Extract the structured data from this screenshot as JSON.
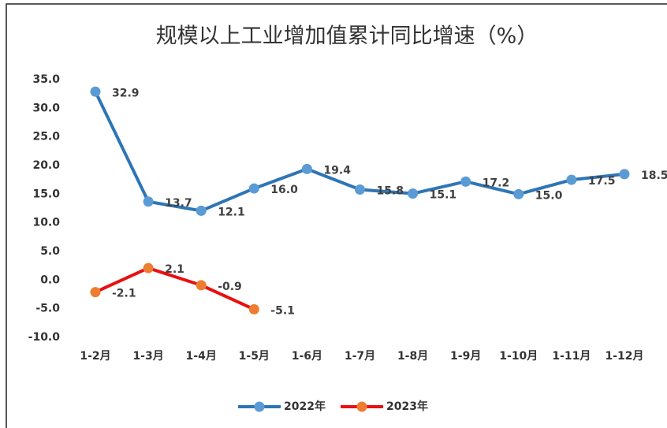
{
  "chart_data": {
    "type": "line",
    "title": "规模以上工业增加值累计同比增速（%）",
    "categories": [
      "1-2月",
      "1-3月",
      "1-4月",
      "1-5月",
      "1-6月",
      "1-7月",
      "1-8月",
      "1-9月",
      "1-10月",
      "1-11月",
      "1-12月"
    ],
    "series": [
      {
        "name": "2022年",
        "color": "#2e75b6",
        "marker_color": "#5b9bd5",
        "values": [
          32.9,
          13.7,
          12.1,
          16.0,
          19.4,
          15.8,
          15.1,
          17.2,
          15.0,
          17.5,
          18.5
        ],
        "value_labels": [
          "32.9",
          "13.7",
          "12.1",
          "16.0",
          "19.4",
          "15.8",
          "15.1",
          "17.2",
          "15.0",
          "17.5",
          "18.5"
        ]
      },
      {
        "name": "2023年",
        "color": "#e81010",
        "marker_color": "#ed7d31",
        "values": [
          -2.1,
          2.1,
          -0.9,
          -5.1,
          null,
          null,
          null,
          null,
          null,
          null,
          null
        ]
      }
    ],
    "ylim": [
      -10,
      35
    ],
    "yticks": [
      {
        "value": -10,
        "label": "-10.0"
      },
      {
        "value": -5,
        "label": "-5.0"
      },
      {
        "value": 0,
        "label": "0.0"
      },
      {
        "value": 5,
        "label": "5.0"
      },
      {
        "value": 10,
        "label": "10.0"
      },
      {
        "value": 15,
        "label": "15.0"
      },
      {
        "value": 20,
        "label": "20.0"
      },
      {
        "value": 25,
        "label": "25.0"
      },
      {
        "value": 30,
        "label": "30.0"
      },
      {
        "value": 35,
        "label": "35.0"
      }
    ],
    "grid": false,
    "legend": "bottom"
  }
}
